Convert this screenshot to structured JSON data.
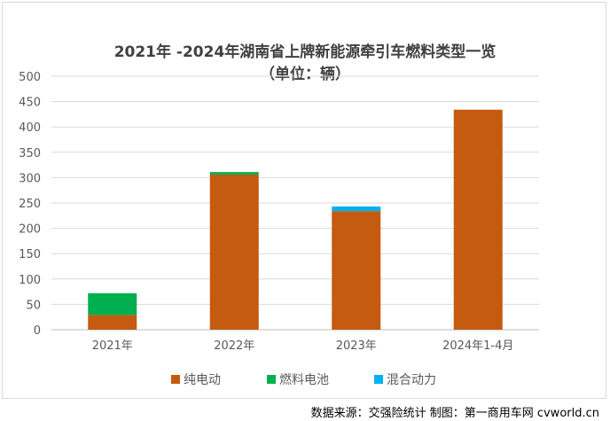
{
  "credit": "数据来源：交强险统计  制图：第一商用车网 cvworld.cn",
  "chart_data": {
    "type": "bar",
    "stacked": true,
    "title_line1": "2021年 -2024年湖南省上牌新能源牵引车燃料类型一览",
    "title_line2": "（单位：辆）",
    "categories": [
      "2021年",
      "2022年",
      "2023年",
      "2024年1-4月"
    ],
    "series": [
      {
        "name": "纯电动",
        "color": "#c55a11",
        "values": [
          29,
          306,
          234,
          434
        ]
      },
      {
        "name": "燃料电池",
        "color": "#00b050",
        "values": [
          43,
          5,
          0,
          0
        ]
      },
      {
        "name": "混合动力",
        "color": "#00b0f0",
        "values": [
          0,
          0,
          9,
          0
        ]
      }
    ],
    "y_ticks": [
      "0",
      "50",
      "100",
      "150",
      "200",
      "250",
      "300",
      "350",
      "400",
      "450",
      "500"
    ],
    "ylim": [
      0,
      500
    ],
    "grid": true,
    "legend_position": "bottom"
  }
}
